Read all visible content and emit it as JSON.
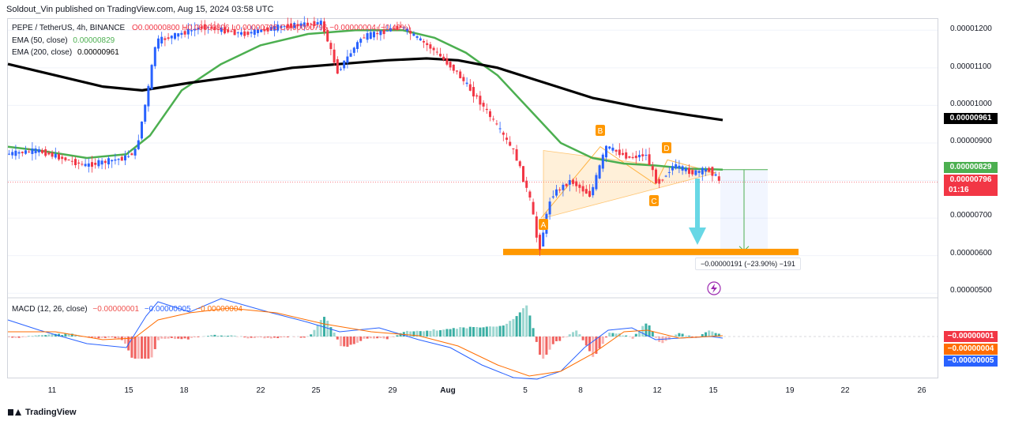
{
  "header": {
    "published": "Soldout_Vin published on TradingView.com, Aug 15, 2024 03:58 UTC"
  },
  "legend": {
    "symbol": "PEPE / TetherUS, 4h, BINANCE",
    "ohlc": "O0.00000800 H0.00000806 L0.00000795 C0.00000796 −0.00000004 (−0.49%)",
    "ema50_label": "EMA (50, close)",
    "ema50_value": "0.00000829",
    "ema200_label": "EMA (200, close)",
    "ema200_value": "0.00000961",
    "macd_label": "MACD (12, 26, close)",
    "macd_v1": "−0.00000001",
    "macd_v2": "−0.00000005",
    "macd_v3": "−0.00000004"
  },
  "price_tags": {
    "ema200": "0.00000961",
    "ema50": "0.00000829",
    "last": "0.00000796",
    "countdown": "01:16",
    "macd_hist": "−0.00000001",
    "macd_signal": "−0.00000004",
    "macd_line": "−0.00000005"
  },
  "measure": {
    "label": "−0.00000191 (−23.90%) −191"
  },
  "pattern_points": [
    "A",
    "B",
    "C",
    "D"
  ],
  "footer": {
    "brand": "TradingView"
  },
  "colors": {
    "up": "#2962ff",
    "down": "#f23645",
    "ema50": "#4caf50",
    "ema200": "#000000",
    "support": "#ff9800",
    "macd_line": "#2962ff",
    "signal_line": "#ff6d00",
    "hist_up": "#26a69a",
    "hist_down": "#ef5350"
  },
  "chart_data": {
    "type": "line",
    "x_axis": [
      "11",
      "15",
      "18",
      "22",
      "25",
      "29",
      "Aug",
      "5",
      "8",
      "12",
      "15",
      "19",
      "22",
      "26"
    ],
    "y_axis": [
      "0.00001200",
      "0.00001100",
      "0.00001000",
      "0.00000900",
      "0.00000700",
      "0.00000600",
      "0.00000500"
    ],
    "ylim": [
      4.9e-06,
      1.23e-05
    ],
    "series": [
      {
        "name": "EMA (50, close)",
        "points": [
          [
            0,
            8.9e-06
          ],
          [
            40,
            8.8e-06
          ],
          [
            100,
            8.6e-06
          ],
          [
            150,
            8.7e-06
          ],
          [
            180,
            9.2e-06
          ],
          [
            220,
            1.04e-05
          ],
          [
            270,
            1.11e-05
          ],
          [
            320,
            1.16e-05
          ],
          [
            380,
            1.19e-05
          ],
          [
            440,
            1.2e-05
          ],
          [
            500,
            1.2e-05
          ],
          [
            540,
            1.18e-05
          ],
          [
            580,
            1.14e-05
          ],
          [
            620,
            1.08e-05
          ],
          [
            660,
            9.9e-06
          ],
          [
            700,
            9e-06
          ],
          [
            740,
            8.6e-06
          ],
          [
            780,
            8.45e-06
          ],
          [
            820,
            8.4e-06
          ],
          [
            860,
            8.32e-06
          ],
          [
            905,
            8.29e-06
          ]
        ]
      },
      {
        "name": "EMA (200, close)",
        "points": [
          [
            0,
            1.11e-05
          ],
          [
            60,
            1.08e-05
          ],
          [
            120,
            1.05e-05
          ],
          [
            170,
            1.04e-05
          ],
          [
            230,
            1.06e-05
          ],
          [
            300,
            1.08e-05
          ],
          [
            360,
            1.1e-05
          ],
          [
            420,
            1.11e-05
          ],
          [
            480,
            1.12e-05
          ],
          [
            530,
            1.125e-05
          ],
          [
            570,
            1.12e-05
          ],
          [
            620,
            1.1e-05
          ],
          [
            680,
            1.06e-05
          ],
          [
            740,
            1.02e-05
          ],
          [
            800,
            9.95e-06
          ],
          [
            860,
            9.75e-06
          ],
          [
            905,
            9.61e-06
          ]
        ]
      },
      {
        "name": "Price",
        "points": [
          [
            0,
            8.7e-06
          ],
          [
            40,
            8.8e-06
          ],
          [
            100,
            8.4e-06
          ],
          [
            150,
            8.6e-06
          ],
          [
            165,
            8.8e-06
          ],
          [
            180,
            1.04e-05
          ],
          [
            190,
            1.17e-05
          ],
          [
            250,
            1.21e-05
          ],
          [
            300,
            1.19e-05
          ],
          [
            350,
            1.21e-05
          ],
          [
            400,
            1.22e-05
          ],
          [
            420,
            1.09e-05
          ],
          [
            450,
            1.18e-05
          ],
          [
            500,
            1.21e-05
          ],
          [
            540,
            1.15e-05
          ],
          [
            570,
            1.09e-05
          ],
          [
            600,
            1.01e-05
          ],
          [
            620,
            9.5e-06
          ],
          [
            645,
            8.7e-06
          ],
          [
            665,
            7.4e-06
          ],
          [
            675,
            6.1e-06
          ],
          [
            690,
            7.6e-06
          ],
          [
            715,
            8e-06
          ],
          [
            740,
            7.6e-06
          ],
          [
            760,
            8.9e-06
          ],
          [
            790,
            8.6e-06
          ],
          [
            810,
            8.7e-06
          ],
          [
            825,
            7.9e-06
          ],
          [
            845,
            8.4e-06
          ],
          [
            870,
            8.2e-06
          ],
          [
            890,
            8.3e-06
          ],
          [
            905,
            7.96e-06
          ]
        ]
      }
    ],
    "support_level": 6.1e-06
  }
}
